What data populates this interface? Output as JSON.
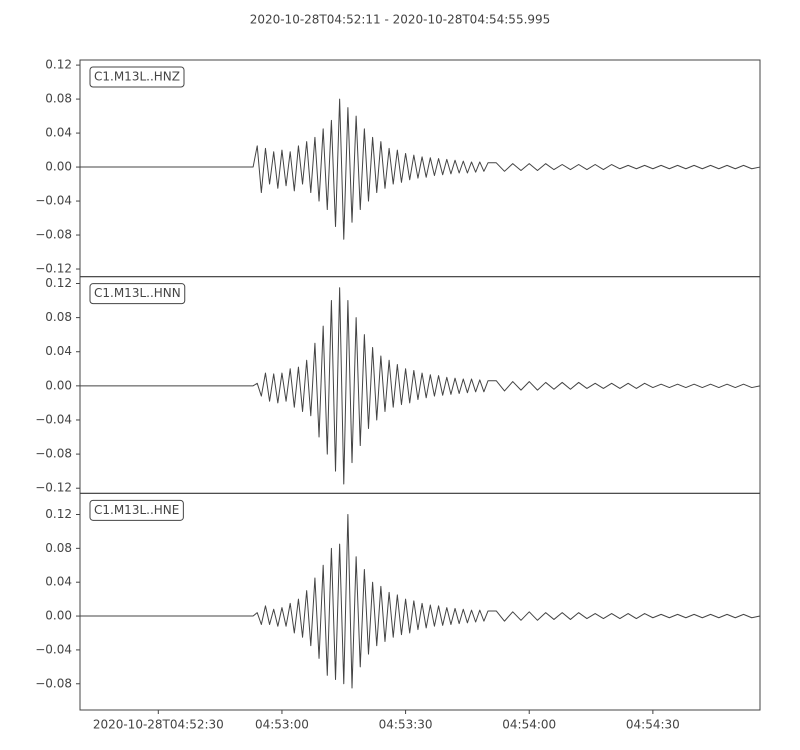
{
  "chart_data": {
    "type": "line",
    "title": "2020-10-28T04:52:11  -  2020-10-28T04:54:55.995",
    "xlim": [
      "04:52:11",
      "04:54:55.995"
    ],
    "xticks": [
      "2020-10-28T04:52:30",
      "04:53:00",
      "04:53:30",
      "04:54:00",
      "04:54:30"
    ],
    "x": [
      "04:52:11",
      "04:52:53",
      "04:52:54",
      "04:52:55",
      "04:52:56",
      "04:52:57",
      "04:52:58",
      "04:52:59",
      "04:53:00",
      "04:53:01",
      "04:53:02",
      "04:53:03",
      "04:53:04",
      "04:53:05",
      "04:53:06",
      "04:53:07",
      "04:53:08",
      "04:53:09",
      "04:53:10",
      "04:53:11",
      "04:53:12",
      "04:53:13",
      "04:53:14",
      "04:53:15",
      "04:53:16",
      "04:53:17",
      "04:53:18",
      "04:53:19",
      "04:53:20",
      "04:53:21",
      "04:53:22",
      "04:53:23",
      "04:53:24",
      "04:53:25",
      "04:53:26",
      "04:53:27",
      "04:53:28",
      "04:53:29",
      "04:53:30",
      "04:53:31",
      "04:53:32",
      "04:53:33",
      "04:53:34",
      "04:53:35",
      "04:53:36",
      "04:53:37",
      "04:53:38",
      "04:53:39",
      "04:53:40",
      "04:53:41",
      "04:53:42",
      "04:53:43",
      "04:53:44",
      "04:53:45",
      "04:53:46",
      "04:53:47",
      "04:53:48",
      "04:53:49",
      "04:53:50",
      "04:53:52",
      "04:53:54",
      "04:53:56",
      "04:53:58",
      "04:54:00",
      "04:54:02",
      "04:54:04",
      "04:54:06",
      "04:54:08",
      "04:54:10",
      "04:54:12",
      "04:54:14",
      "04:54:16",
      "04:54:18",
      "04:54:20",
      "04:54:22",
      "04:54:24",
      "04:54:26",
      "04:54:28",
      "04:54:30",
      "04:54:32",
      "04:54:34",
      "04:54:36",
      "04:54:38",
      "04:54:40",
      "04:54:42",
      "04:54:44",
      "04:54:46",
      "04:54:48",
      "04:54:50",
      "04:54:52",
      "04:54:54",
      "04:54:55.995"
    ],
    "series": [
      {
        "name": "C1.M13L..HNZ",
        "color": "#444444",
        "ylim": [
          -0.129,
          0.126
        ],
        "yticks": [
          {
            "value": -0.12,
            "label": "−0.12"
          },
          {
            "value": -0.08,
            "label": "−0.08"
          },
          {
            "value": -0.04,
            "label": "−0.04"
          },
          {
            "value": 0,
            "label": "0.00"
          },
          0.04,
          0.08,
          0.12
        ],
        "values": [
          0,
          0,
          0.025,
          -0.03,
          0.022,
          -0.02,
          0.018,
          -0.025,
          0.02,
          -0.022,
          0.018,
          -0.028,
          0.025,
          -0.02,
          0.03,
          -0.03,
          0.035,
          -0.04,
          0.045,
          -0.05,
          0.055,
          -0.07,
          0.08,
          -0.085,
          0.07,
          -0.065,
          0.06,
          -0.05,
          0.045,
          -0.04,
          0.035,
          -0.03,
          0.03,
          -0.025,
          0.022,
          -0.02,
          0.02,
          -0.018,
          0.016,
          -0.015,
          0.014,
          -0.013,
          0.012,
          -0.012,
          0.011,
          -0.01,
          0.01,
          -0.009,
          0.009,
          -0.008,
          0.008,
          -0.007,
          0.007,
          -0.007,
          0.006,
          -0.006,
          0.006,
          -0.005,
          0.005,
          0.005,
          -0.005,
          0.004,
          -0.004,
          0.004,
          -0.004,
          0.004,
          -0.003,
          0.003,
          -0.003,
          0.003,
          -0.003,
          0.003,
          -0.003,
          0.003,
          -0.002,
          0.002,
          -0.002,
          0.002,
          -0.002,
          0.002,
          -0.002,
          0.002,
          -0.002,
          0.002,
          -0.002,
          0.002,
          -0.002,
          0.002,
          -0.002,
          0.002,
          -0.002,
          0
        ]
      },
      {
        "name": "C1.M13L..HNN",
        "color": "#444444",
        "ylim": [
          -0.126,
          0.128
        ],
        "yticks": [
          {
            "value": -0.12,
            "label": "−0.12"
          },
          {
            "value": -0.08,
            "label": "−0.08"
          },
          {
            "value": -0.04,
            "label": "−0.04"
          },
          {
            "value": 0,
            "label": "0.00"
          },
          0.04,
          0.08,
          0.12
        ],
        "values": [
          0,
          0,
          0.003,
          -0.012,
          0.015,
          -0.018,
          0.014,
          -0.02,
          0.015,
          -0.018,
          0.02,
          -0.025,
          0.022,
          -0.03,
          0.03,
          -0.035,
          0.05,
          -0.06,
          0.07,
          -0.08,
          0.1,
          -0.1,
          0.115,
          -0.115,
          0.1,
          -0.09,
          0.08,
          -0.07,
          0.06,
          -0.05,
          0.045,
          -0.04,
          0.035,
          -0.03,
          0.03,
          -0.025,
          0.025,
          -0.022,
          0.02,
          -0.02,
          0.018,
          -0.016,
          0.015,
          -0.014,
          0.013,
          -0.012,
          0.012,
          -0.011,
          0.01,
          -0.01,
          0.009,
          -0.009,
          0.008,
          -0.008,
          0.008,
          -0.007,
          0.007,
          -0.007,
          0.006,
          0.006,
          -0.006,
          0.005,
          -0.005,
          0.005,
          -0.005,
          0.004,
          -0.004,
          0.004,
          -0.004,
          0.004,
          -0.003,
          0.003,
          -0.003,
          0.003,
          -0.003,
          0.003,
          -0.003,
          0.003,
          -0.002,
          0.002,
          -0.002,
          0.002,
          -0.002,
          0.002,
          -0.002,
          0.002,
          -0.002,
          0.002,
          -0.002,
          0.002,
          -0.002,
          0
        ]
      },
      {
        "name": "C1.M13L..HNE",
        "color": "#444444",
        "ylim": [
          -0.111,
          0.145
        ],
        "yticks": [
          {
            "value": -0.08,
            "label": "−0.08"
          },
          {
            "value": -0.04,
            "label": "−0.04"
          },
          {
            "value": 0,
            "label": "0.00"
          },
          0.04,
          0.08,
          0.12
        ],
        "values": [
          0,
          0,
          0.004,
          -0.01,
          0.012,
          -0.01,
          0.008,
          -0.012,
          0.01,
          -0.012,
          0.015,
          -0.02,
          0.02,
          -0.025,
          0.03,
          -0.035,
          0.045,
          -0.05,
          0.06,
          -0.07,
          0.08,
          -0.075,
          0.085,
          -0.08,
          0.12,
          -0.085,
          0.07,
          -0.06,
          0.055,
          -0.045,
          0.04,
          -0.035,
          0.035,
          -0.03,
          0.028,
          -0.025,
          0.025,
          -0.022,
          0.02,
          -0.02,
          0.018,
          -0.016,
          0.015,
          -0.014,
          0.013,
          -0.012,
          0.012,
          -0.011,
          0.01,
          -0.01,
          0.009,
          -0.009,
          0.008,
          -0.008,
          0.007,
          -0.007,
          0.007,
          -0.006,
          0.006,
          0.006,
          -0.006,
          0.005,
          -0.005,
          0.005,
          -0.005,
          0.004,
          -0.004,
          0.004,
          -0.004,
          0.004,
          -0.003,
          0.003,
          -0.003,
          0.003,
          -0.003,
          0.003,
          -0.003,
          0.003,
          -0.002,
          0.002,
          -0.002,
          0.002,
          -0.002,
          0.002,
          -0.002,
          0.002,
          -0.002,
          0.002,
          -0.002,
          0.002,
          -0.002,
          0
        ]
      }
    ]
  }
}
